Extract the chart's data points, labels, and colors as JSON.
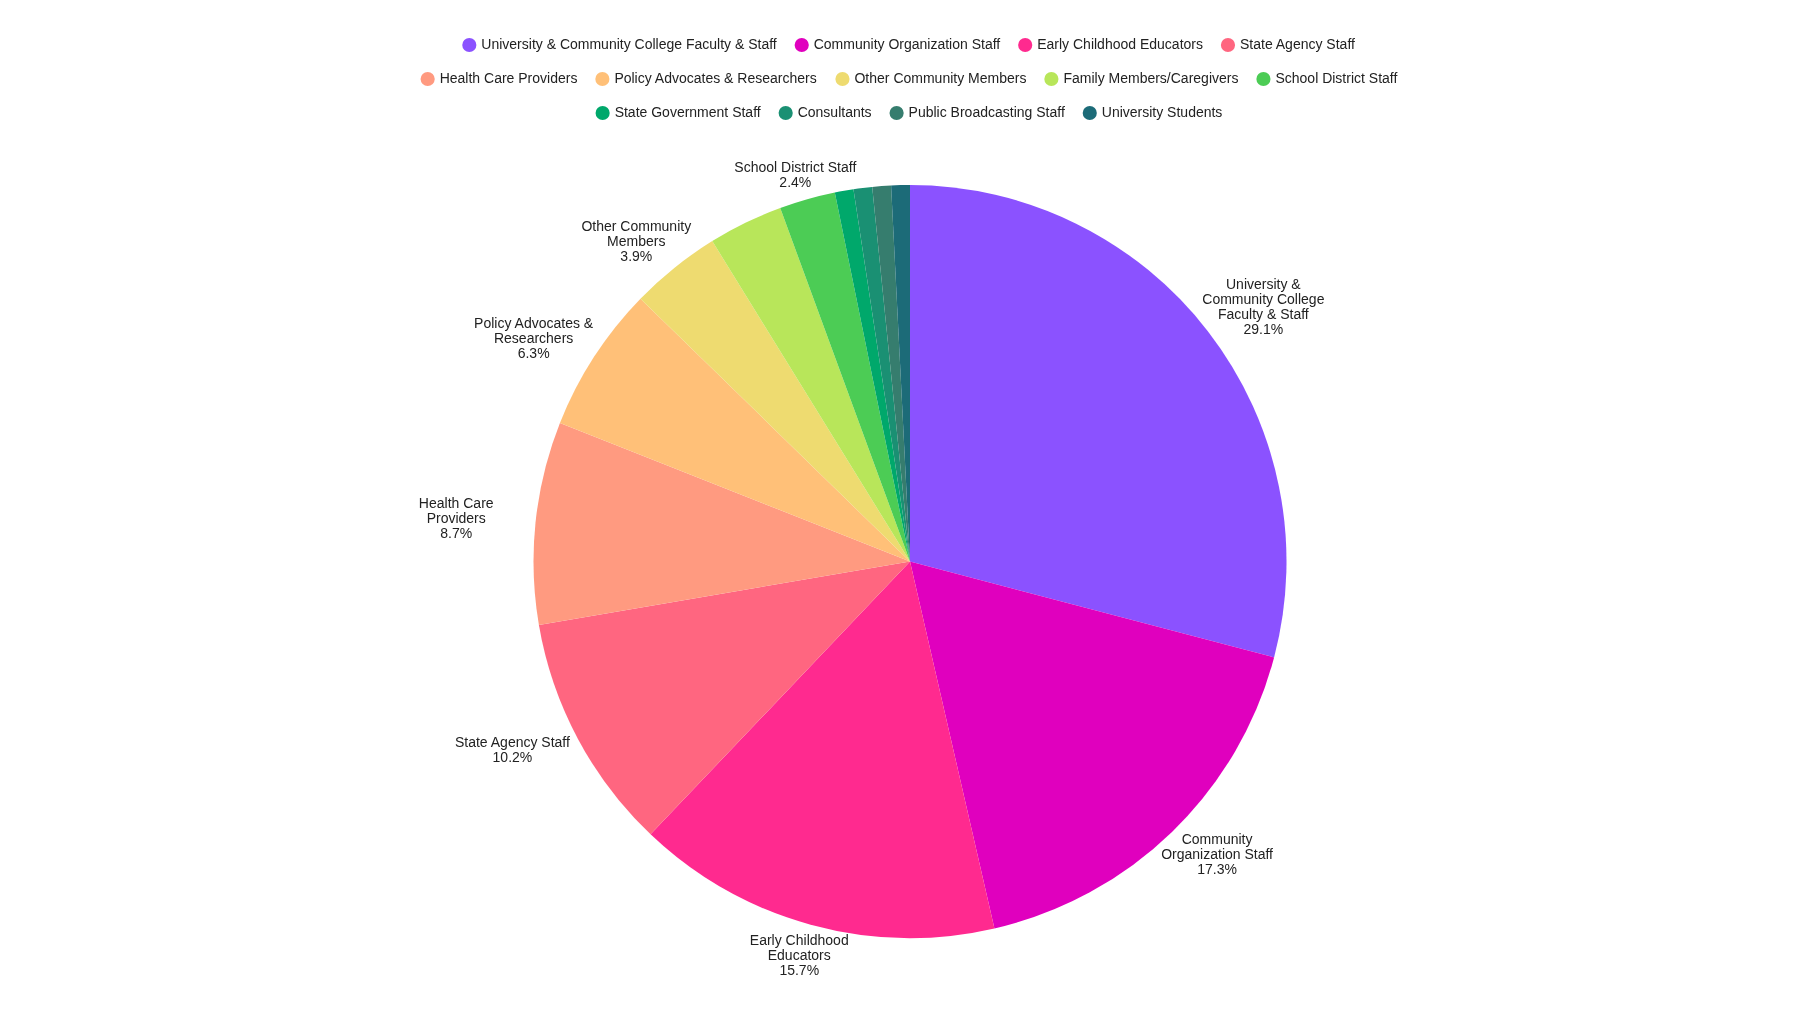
{
  "chart_data": {
    "type": "pie",
    "categories": [
      "University & Community College Faculty & Staff",
      "Community Organization Staff",
      "Early Childhood Educators",
      "State Agency Staff",
      "Health Care Providers",
      "Policy Advocates & Researchers",
      "Other Community Members",
      "Family Members/Caregivers",
      "School District Staff",
      "State Government Staff",
      "Consultants",
      "Public Broadcasting Staff",
      "University Students"
    ],
    "values": [
      29.1,
      17.3,
      15.7,
      10.2,
      8.7,
      6.3,
      3.9,
      3.2,
      2.4,
      0.8,
      0.8,
      0.8,
      0.8
    ],
    "value_labels": [
      "29.1%",
      "17.3%",
      "15.7%",
      "10.2%",
      "8.7%",
      "6.3%",
      "3.9%",
      null,
      "2.4%",
      null,
      null,
      null,
      null
    ],
    "colors": [
      "#8b52ff",
      "#e000be",
      "#ff2a8f",
      "#ff6680",
      "#ff9a80",
      "#ffc078",
      "#eedb70",
      "#b8e65a",
      "#4ccc55",
      "#00a86b",
      "#1a9073",
      "#367d6e",
      "#1c6b78"
    ],
    "legend": "top"
  }
}
